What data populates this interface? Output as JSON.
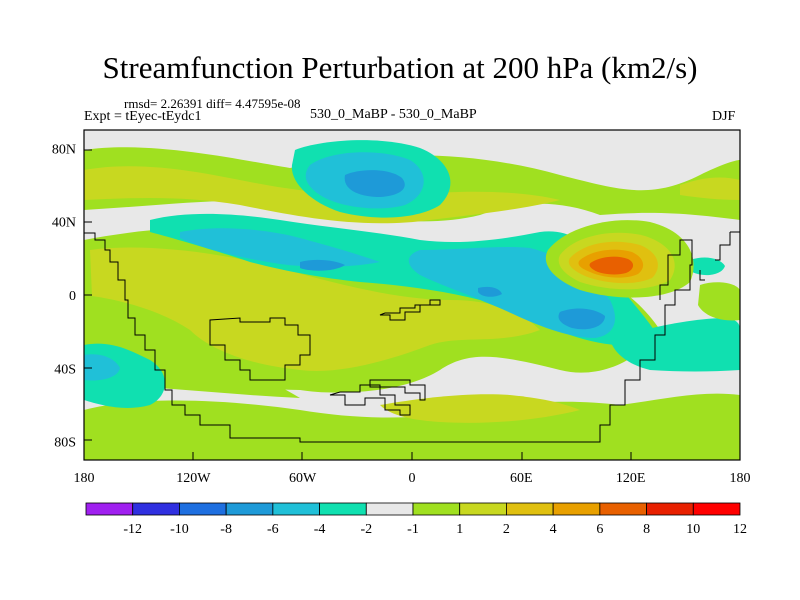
{
  "chart_data": {
    "type": "heatmap",
    "title": "Streamfunction Perturbation at 200 hPa (km2/s)",
    "stats": "rmsd= 2.26391 diff= 4.47595e-08",
    "experiment": "Expt = tEyec-tEydc1",
    "center_label": "530_0_MaBP - 530_0_MaBP",
    "season": "DJF",
    "x_ticks": [
      "180",
      "120W",
      "60W",
      "0",
      "60E",
      "120E",
      "180"
    ],
    "y_ticks": [
      "80N",
      "40N",
      "0",
      "40S",
      "80S"
    ],
    "xlim": [
      -180,
      180
    ],
    "ylim": [
      -90,
      90
    ],
    "colorbar_labels": [
      "-12",
      "-10",
      "-8",
      "-6",
      "-4",
      "-2",
      "-1",
      "1",
      "2",
      "4",
      "6",
      "8",
      "10",
      "12"
    ],
    "colorbar_colors": [
      "#a020f0",
      "#3030e0",
      "#1e6fe0",
      "#1e9ad8",
      "#20c0d8",
      "#10e0b0",
      "#e8e8e8",
      "#a0e020",
      "#c8d820",
      "#e0c010",
      "#e8a000",
      "#e86000",
      "#e82000",
      "#ff0000"
    ]
  }
}
